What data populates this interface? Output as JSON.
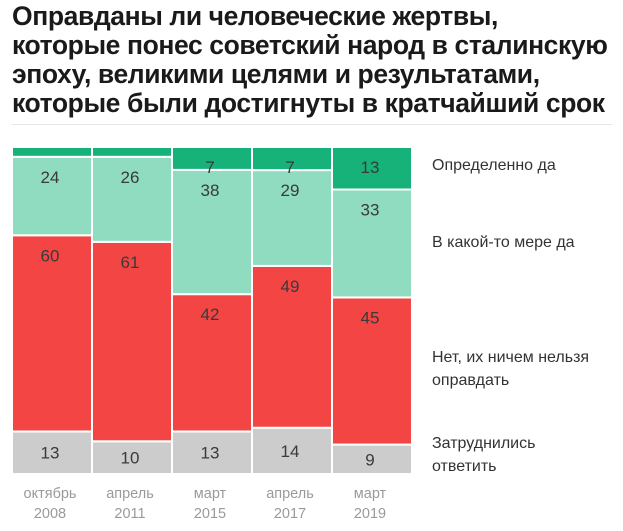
{
  "title_lines": [
    "Оправданы ли человеческие жертвы,",
    "которые понес советский народ в сталинскую",
    "эпоху, великими целями и результатами,",
    "которые были достигнуты в кратчайший срок"
  ],
  "chart_data": {
    "type": "bar",
    "stacked": true,
    "title": "Оправданы ли человеческие жертвы, которые понес советский народ в сталинскую эпоху, великими целями и результатами, которые были достигнуты в кратчайший срок",
    "categories": [
      [
        "октябрь",
        "2008"
      ],
      [
        "апрель",
        "2011"
      ],
      [
        "март",
        "2015"
      ],
      [
        "апрель",
        "2017"
      ],
      [
        "март",
        "2019"
      ]
    ],
    "series": [
      {
        "name": "Затруднились ответить",
        "color": "#cccccc",
        "values": [
          13,
          10,
          13,
          14,
          9
        ],
        "labels": [
          "13",
          "10",
          "13",
          "14",
          "9"
        ]
      },
      {
        "name": "Нет, их ничем нельзя оправдать",
        "color": "#f44545",
        "values": [
          60,
          61,
          42,
          49,
          45
        ],
        "labels": [
          "60",
          "61",
          "42",
          "49",
          "45"
        ]
      },
      {
        "name": "В какой-то мере да",
        "color": "#8fdcc0",
        "values": [
          24,
          26,
          38,
          29,
          33
        ],
        "labels": [
          "24",
          "26",
          "38",
          "29",
          "33"
        ]
      },
      {
        "name": "Определенно да",
        "color": "#16b279",
        "values": [
          3,
          3,
          7,
          7,
          13
        ],
        "labels": [
          "",
          "",
          "7",
          "7",
          "13"
        ]
      }
    ],
    "legend": [
      {
        "lines": [
          "Определенно да"
        ]
      },
      {
        "lines": [
          "В какой-то мере да"
        ]
      },
      {
        "lines": [
          "Нет, их ничем нельзя",
          "оправдать"
        ]
      },
      {
        "lines": [
          "Затруднились",
          "ответить"
        ]
      }
    ],
    "legend_placement": "right",
    "ylim": [
      0,
      100
    ],
    "grid": false
  }
}
